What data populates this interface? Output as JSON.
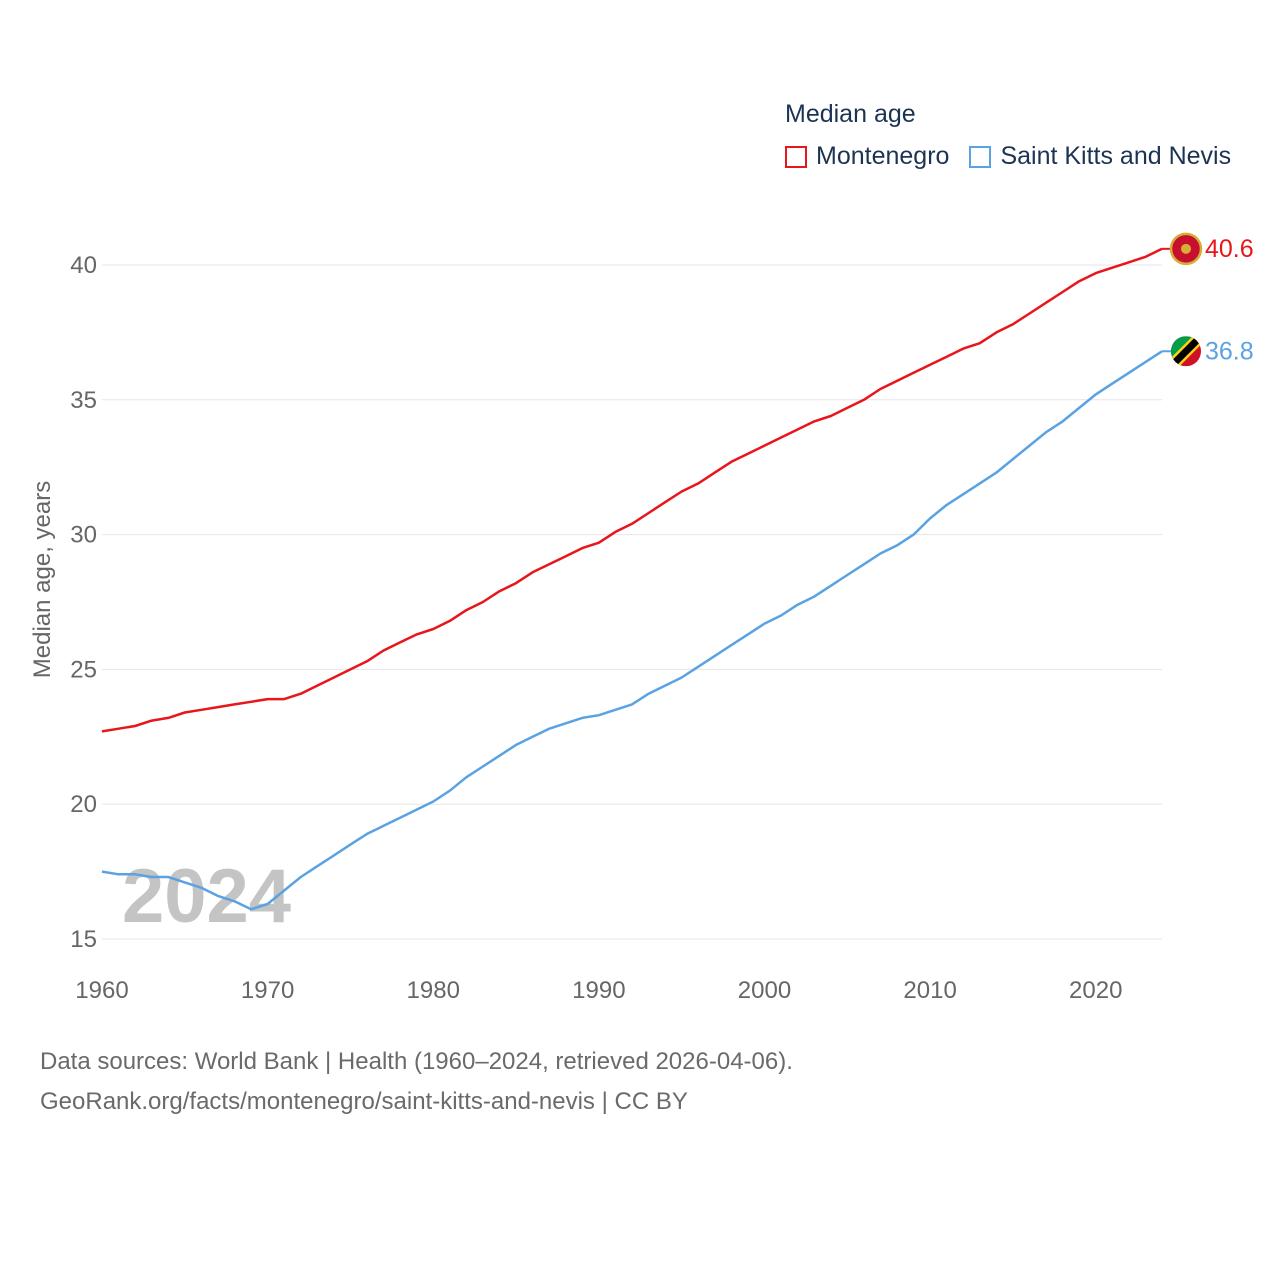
{
  "chart_data": {
    "type": "line",
    "legend_title": "Median age",
    "ylabel": "Median age, years",
    "xlabel": "",
    "xlim": [
      1960,
      2024
    ],
    "ylim": [
      15,
      42
    ],
    "x_ticks": [
      1960,
      1970,
      1980,
      1990,
      2000,
      2010,
      2020
    ],
    "y_ticks": [
      15,
      20,
      25,
      30,
      35,
      40
    ],
    "year_watermark": "2024",
    "x": [
      1960,
      1961,
      1962,
      1963,
      1964,
      1965,
      1966,
      1967,
      1968,
      1969,
      1970,
      1971,
      1972,
      1973,
      1974,
      1975,
      1976,
      1977,
      1978,
      1979,
      1980,
      1981,
      1982,
      1983,
      1984,
      1985,
      1986,
      1987,
      1988,
      1989,
      1990,
      1991,
      1992,
      1993,
      1994,
      1995,
      1996,
      1997,
      1998,
      1999,
      2000,
      2001,
      2002,
      2003,
      2004,
      2005,
      2006,
      2007,
      2008,
      2009,
      2010,
      2011,
      2012,
      2013,
      2014,
      2015,
      2016,
      2017,
      2018,
      2019,
      2020,
      2021,
      2022,
      2023,
      2024
    ],
    "series": [
      {
        "name": "Montenegro",
        "color": "#e8161b",
        "end_label": "40.6",
        "flag": "montenegro-flag-icon",
        "values": [
          22.7,
          22.8,
          22.9,
          23.1,
          23.2,
          23.4,
          23.5,
          23.6,
          23.7,
          23.8,
          23.9,
          23.9,
          24.1,
          24.4,
          24.7,
          25.0,
          25.3,
          25.7,
          26.0,
          26.3,
          26.5,
          26.8,
          27.2,
          27.5,
          27.9,
          28.2,
          28.6,
          28.9,
          29.2,
          29.5,
          29.7,
          30.1,
          30.4,
          30.8,
          31.2,
          31.6,
          31.9,
          32.3,
          32.7,
          33.0,
          33.3,
          33.6,
          33.9,
          34.2,
          34.4,
          34.7,
          35.0,
          35.4,
          35.7,
          36.0,
          36.3,
          36.6,
          36.9,
          37.1,
          37.5,
          37.8,
          38.2,
          38.6,
          39.0,
          39.4,
          39.7,
          39.9,
          40.1,
          40.3,
          40.6
        ]
      },
      {
        "name": "Saint Kitts and Nevis",
        "color": "#5aa2e3",
        "end_label": "36.8",
        "flag": "saint-kitts-and-nevis-flag-icon",
        "values": [
          17.5,
          17.4,
          17.4,
          17.3,
          17.3,
          17.1,
          16.9,
          16.6,
          16.4,
          16.1,
          16.3,
          16.8,
          17.3,
          17.7,
          18.1,
          18.5,
          18.9,
          19.2,
          19.5,
          19.8,
          20.1,
          20.5,
          21.0,
          21.4,
          21.8,
          22.2,
          22.5,
          22.8,
          23.0,
          23.2,
          23.3,
          23.5,
          23.7,
          24.1,
          24.4,
          24.7,
          25.1,
          25.5,
          25.9,
          26.3,
          26.7,
          27.0,
          27.4,
          27.7,
          28.1,
          28.5,
          28.9,
          29.3,
          29.6,
          30.0,
          30.6,
          31.1,
          31.5,
          31.9,
          32.3,
          32.8,
          33.3,
          33.8,
          34.2,
          34.7,
          35.2,
          35.6,
          36.0,
          36.4,
          36.8
        ]
      }
    ]
  },
  "source": {
    "line1": "Data sources: World Bank | Health (1960–2024, retrieved 2026-04-06).",
    "line2": "GeoRank.org/facts/montenegro/saint-kitts-and-nevis | CC BY"
  }
}
